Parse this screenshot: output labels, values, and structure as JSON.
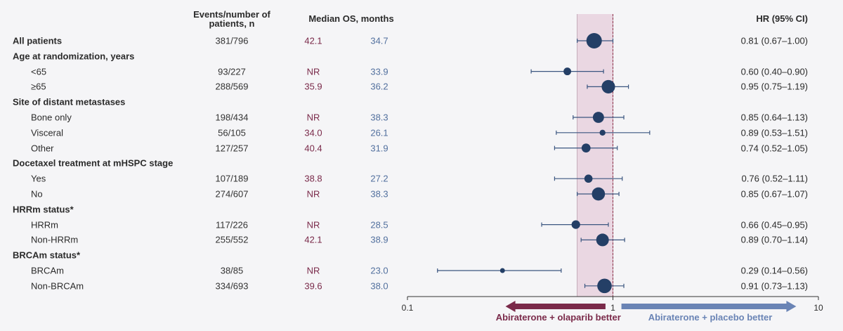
{
  "headers": {
    "events": "Events/number of patients, n",
    "median": "Median OS, months",
    "hr": "HR (95% CI)"
  },
  "rows": [
    {
      "kind": "total",
      "label": "All patients",
      "events": "381/796",
      "olaparib": "42.1",
      "placebo": "34.7",
      "hr_text": "0.81 (0.67–1.00)"
    },
    {
      "kind": "group",
      "label": "Age at randomization, years"
    },
    {
      "kind": "sub",
      "label": "<65",
      "events": "93/227",
      "olaparib": "NR",
      "placebo": "33.9",
      "hr_text": "0.60 (0.40–0.90)"
    },
    {
      "kind": "sub",
      "label": "≥65",
      "events": "288/569",
      "olaparib": "35.9",
      "placebo": "36.2",
      "hr_text": "0.95 (0.75–1.19)"
    },
    {
      "kind": "group",
      "label": "Site of distant metastases"
    },
    {
      "kind": "sub",
      "label": "Bone only",
      "events": "198/434",
      "olaparib": "NR",
      "placebo": "38.3",
      "hr_text": "0.85 (0.64–1.13)"
    },
    {
      "kind": "sub",
      "label": "Visceral",
      "events": "56/105",
      "olaparib": "34.0",
      "placebo": "26.1",
      "hr_text": "0.89 (0.53–1.51)"
    },
    {
      "kind": "sub",
      "label": "Other",
      "events": "127/257",
      "olaparib": "40.4",
      "placebo": "31.9",
      "hr_text": "0.74 (0.52–1.05)"
    },
    {
      "kind": "group",
      "label": "Docetaxel treatment at mHSPC stage"
    },
    {
      "kind": "sub",
      "label": "Yes",
      "events": "107/189",
      "olaparib": "38.8",
      "placebo": "27.2",
      "hr_text": "0.76 (0.52–1.11)"
    },
    {
      "kind": "sub",
      "label": "No",
      "events": "274/607",
      "olaparib": "NR",
      "placebo": "38.3",
      "hr_text": "0.85 (0.67–1.07)"
    },
    {
      "kind": "group",
      "label": "HRRm status*"
    },
    {
      "kind": "sub",
      "label": "HRRm",
      "events": "117/226",
      "olaparib": "NR",
      "placebo": "28.5",
      "hr_text": "0.66 (0.45–0.95)"
    },
    {
      "kind": "sub",
      "label": "Non-HRRm",
      "events": "255/552",
      "olaparib": "42.1",
      "placebo": "38.9",
      "hr_text": "0.89 (0.70–1.14)"
    },
    {
      "kind": "group",
      "label": "BRCAm status*"
    },
    {
      "kind": "sub",
      "label": "BRCAm",
      "events": "38/85",
      "olaparib": "NR",
      "placebo": "23.0",
      "hr_text": "0.29 (0.14–0.56)"
    },
    {
      "kind": "sub",
      "label": "Non-BRCAm",
      "events": "334/693",
      "olaparib": "39.6",
      "placebo": "38.0",
      "hr_text": "0.91 (0.73–1.13)"
    }
  ],
  "chart_data": {
    "type": "forest",
    "x_scale": "log",
    "xlim": [
      0.1,
      10
    ],
    "x_ticks": [
      {
        "value": 0.1,
        "label": "0.1"
      },
      {
        "value": 1,
        "label": "1"
      },
      {
        "value": 10,
        "label": "10"
      }
    ],
    "reference_line": 1,
    "overall_ci_band": [
      0.67,
      1.0
    ],
    "points": [
      {
        "label": "All patients",
        "hr": 0.81,
        "lo": 0.67,
        "hi": 1.0,
        "events": 381
      },
      {
        "label": "<65",
        "hr": 0.6,
        "lo": 0.4,
        "hi": 0.9,
        "events": 93
      },
      {
        "label": "≥65",
        "hr": 0.95,
        "lo": 0.75,
        "hi": 1.19,
        "events": 288
      },
      {
        "label": "Bone only",
        "hr": 0.85,
        "lo": 0.64,
        "hi": 1.13,
        "events": 198
      },
      {
        "label": "Visceral",
        "hr": 0.89,
        "lo": 0.53,
        "hi": 1.51,
        "events": 56
      },
      {
        "label": "Other",
        "hr": 0.74,
        "lo": 0.52,
        "hi": 1.05,
        "events": 127
      },
      {
        "label": "Yes",
        "hr": 0.76,
        "lo": 0.52,
        "hi": 1.11,
        "events": 107
      },
      {
        "label": "No",
        "hr": 0.85,
        "lo": 0.67,
        "hi": 1.07,
        "events": 274
      },
      {
        "label": "HRRm",
        "hr": 0.66,
        "lo": 0.45,
        "hi": 0.95,
        "events": 117
      },
      {
        "label": "Non-HRRm",
        "hr": 0.89,
        "lo": 0.7,
        "hi": 1.14,
        "events": 255
      },
      {
        "label": "BRCAm",
        "hr": 0.29,
        "lo": 0.14,
        "hi": 0.56,
        "events": 38
      },
      {
        "label": "Non-BRCAm",
        "hr": 0.91,
        "lo": 0.73,
        "hi": 1.13,
        "events": 334
      }
    ],
    "favors_left": "Abiraterone + olaparib better",
    "favors_right": "Abiraterone + placebo better",
    "colors": {
      "marker": "#243f66",
      "band": "#ead7e2",
      "olaparib": "#7a2a4a",
      "placebo": "#6a84b5",
      "axis": "#333333"
    }
  }
}
